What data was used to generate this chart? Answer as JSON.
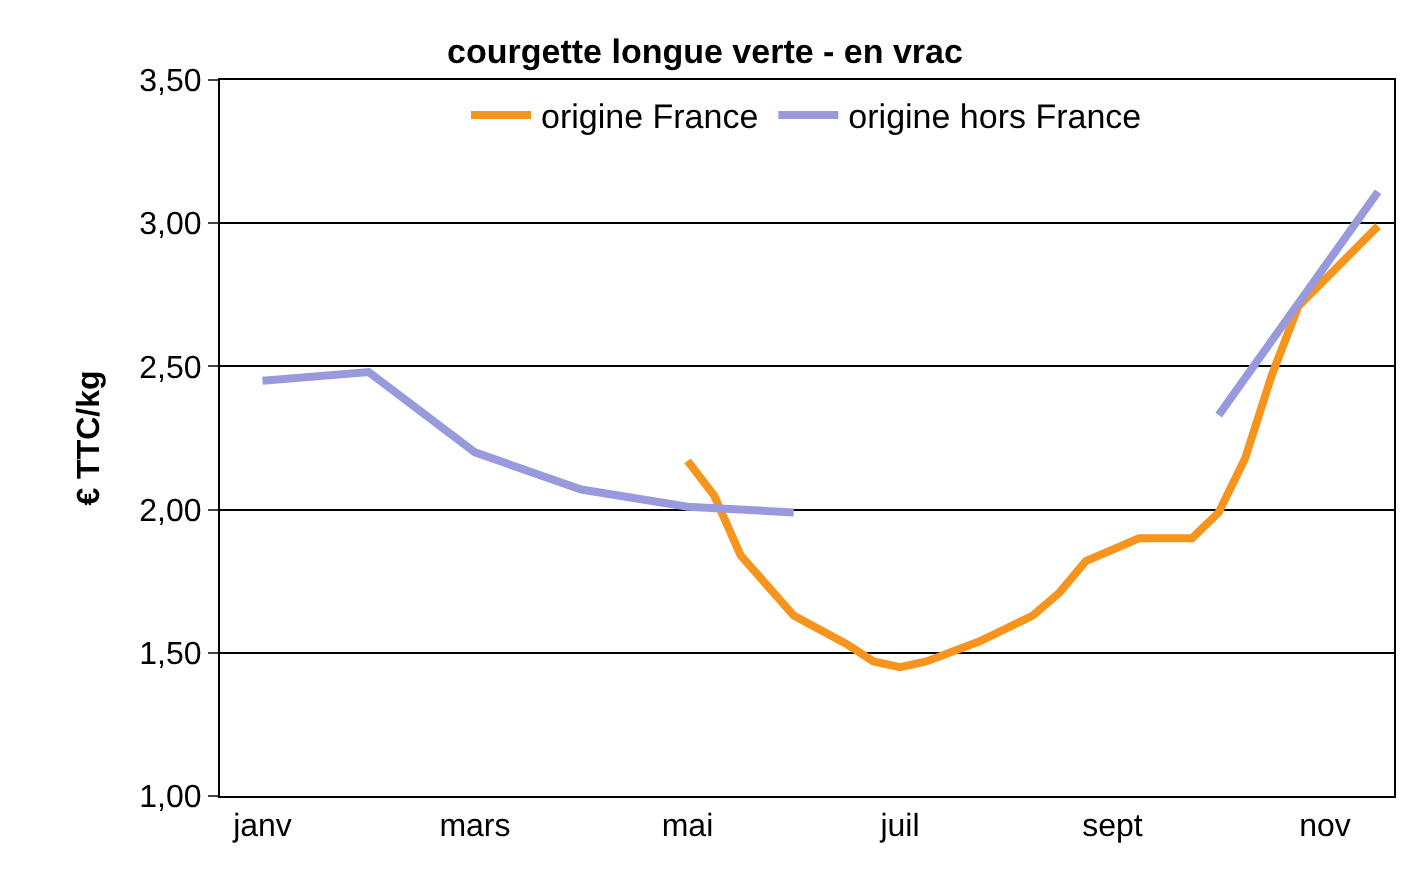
{
  "chart_data": {
    "type": "line",
    "title": "courgette longue verte - en vrac",
    "ylabel": "€ TTC/kg",
    "categories": [
      "janv",
      null,
      null,
      null,
      null,
      null,
      null,
      null,
      "mars",
      null,
      null,
      null,
      null,
      null,
      null,
      null,
      "mai",
      null,
      null,
      null,
      null,
      null,
      null,
      null,
      "juil",
      null,
      null,
      null,
      null,
      null,
      null,
      null,
      "sept",
      null,
      null,
      null,
      null,
      null,
      null,
      null,
      "nov",
      null,
      null
    ],
    "series": [
      {
        "name": "origine France",
        "color": "#f7941d",
        "values": [
          null,
          null,
          null,
          null,
          null,
          null,
          null,
          null,
          null,
          null,
          null,
          null,
          null,
          null,
          null,
          null,
          2.17,
          2.05,
          1.84,
          null,
          1.63,
          null,
          1.53,
          1.47,
          1.45,
          1.47,
          null,
          1.54,
          null,
          1.63,
          1.71,
          1.82,
          null,
          1.9,
          null,
          1.9,
          1.99,
          2.18,
          2.47,
          2.71,
          null,
          null,
          2.99
        ]
      },
      {
        "name": "origine hors France",
        "color": "#9999dd",
        "values": [
          2.45,
          null,
          null,
          null,
          2.48,
          null,
          null,
          null,
          2.2,
          null,
          null,
          null,
          2.07,
          null,
          null,
          null,
          2.01,
          null,
          null,
          null,
          1.99,
          null,
          null,
          null,
          null,
          null,
          null,
          null,
          null,
          null,
          null,
          null,
          null,
          null,
          null,
          null,
          null,
          null,
          null,
          null,
          null,
          null,
          null
        ]
      },
      {
        "color": "#9999dd",
        "values": [
          null,
          null,
          null,
          null,
          null,
          null,
          null,
          null,
          null,
          null,
          null,
          null,
          null,
          null,
          null,
          null,
          null,
          null,
          null,
          null,
          null,
          null,
          null,
          null,
          null,
          null,
          null,
          null,
          null,
          null,
          null,
          null,
          null,
          null,
          null,
          null,
          2.33,
          null,
          null,
          null,
          null,
          null,
          3.11
        ]
      }
    ],
    "ylim": [
      1,
      3.5
    ],
    "yticks": [
      {
        "value": 1,
        "label": "1,00"
      },
      {
        "value": 1.5,
        "label": "1,50"
      },
      {
        "value": 2,
        "label": "2,00"
      },
      {
        "value": 2.5,
        "label": "2,50"
      },
      {
        "value": 3,
        "label": "3,00"
      },
      {
        "value": 3.5,
        "label": "3,50"
      }
    ],
    "grid": "y",
    "legend": "top",
    "marker": "none",
    "line_style": "solid"
  }
}
